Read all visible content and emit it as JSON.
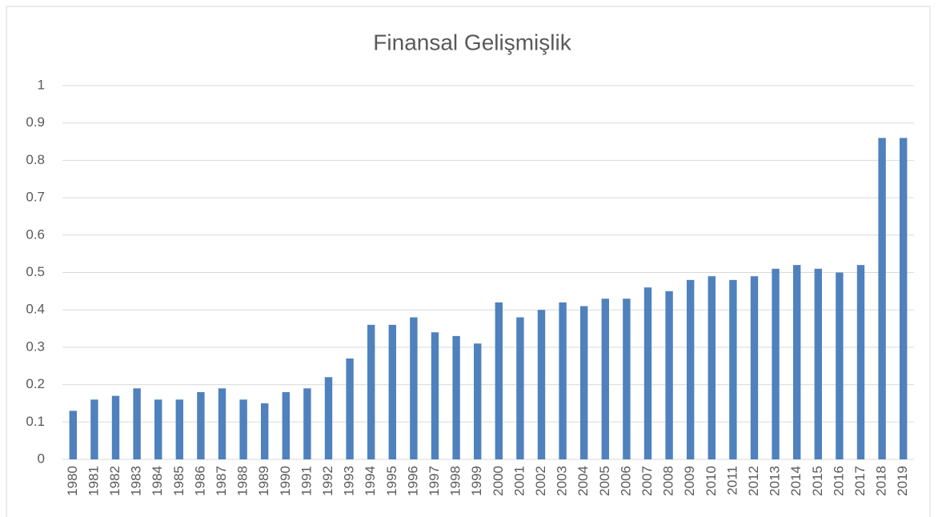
{
  "chart_data": {
    "type": "bar",
    "title": "Finansal Gelişmişlik",
    "categories": [
      "1980",
      "1981",
      "1982",
      "1983",
      "1984",
      "1985",
      "1986",
      "1987",
      "1988",
      "1989",
      "1990",
      "1991",
      "1992",
      "1993",
      "1994",
      "1995",
      "1996",
      "1997",
      "1998",
      "1999",
      "2000",
      "2001",
      "2002",
      "2003",
      "2004",
      "2005",
      "2006",
      "2007",
      "2008",
      "2009",
      "2010",
      "2011",
      "2012",
      "2013",
      "2014",
      "2015",
      "2016",
      "2017",
      "2018",
      "2019"
    ],
    "values": [
      0.13,
      0.16,
      0.17,
      0.19,
      0.16,
      0.16,
      0.18,
      0.19,
      0.16,
      0.15,
      0.18,
      0.19,
      0.22,
      0.27,
      0.36,
      0.36,
      0.38,
      0.34,
      0.33,
      0.31,
      0.42,
      0.38,
      0.4,
      0.42,
      0.41,
      0.43,
      0.43,
      0.46,
      0.45,
      0.48,
      0.49,
      0.48,
      0.49,
      0.51,
      0.52,
      0.51,
      0.5,
      0.52,
      0.86,
      0.86
    ],
    "color": "#4f81bd",
    "ylim": [
      0,
      1
    ],
    "yticks": [
      0,
      0.1,
      0.2,
      0.3,
      0.4,
      0.5,
      0.6,
      0.7,
      0.8,
      0.9,
      1
    ],
    "grid": true
  }
}
